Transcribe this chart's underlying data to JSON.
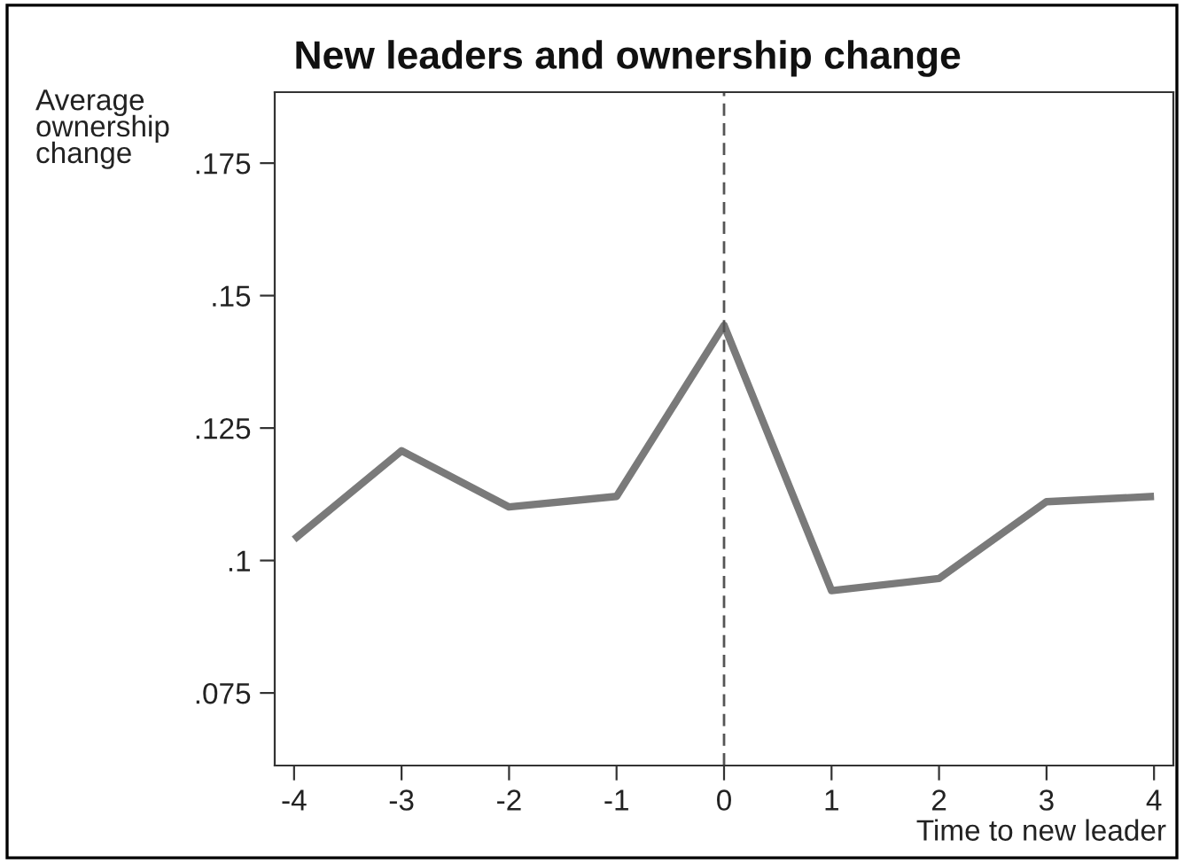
{
  "chart_data": {
    "type": "line",
    "title": "New leaders and ownership change",
    "xlabel": "Time to new leader",
    "ylabel": "Average\nownership\nchange",
    "x": [
      -4,
      -3,
      -2,
      -1,
      0,
      1,
      2,
      3,
      4
    ],
    "series": [
      {
        "color": "#7a7a7a",
        "values": [
          0.104,
          0.1207,
          0.1101,
          0.1121,
          0.1444,
          0.0943,
          0.0966,
          0.1111,
          0.1121
        ]
      }
    ],
    "xlim": [
      -4.18,
      4.18
    ],
    "ylim": [
      0.0613,
      0.1884
    ],
    "xticks": [
      -4,
      -3,
      -2,
      -1,
      0,
      1,
      2,
      3,
      4
    ],
    "yticks": [
      {
        "value": 0.075,
        "label": ".075"
      },
      {
        "value": 0.1,
        "label": ".1"
      },
      {
        "value": 0.125,
        "label": ".125"
      },
      {
        "value": 0.15,
        "label": ".15"
      },
      {
        "value": 0.175,
        "label": ".175"
      }
    ],
    "ref_lines": [
      {
        "axis": "x",
        "value": 0,
        "label": null,
        "color": "#555555",
        "line_style": "dashed"
      }
    ],
    "grid": false,
    "legend": false,
    "marker": "none",
    "line_style": "solid"
  }
}
